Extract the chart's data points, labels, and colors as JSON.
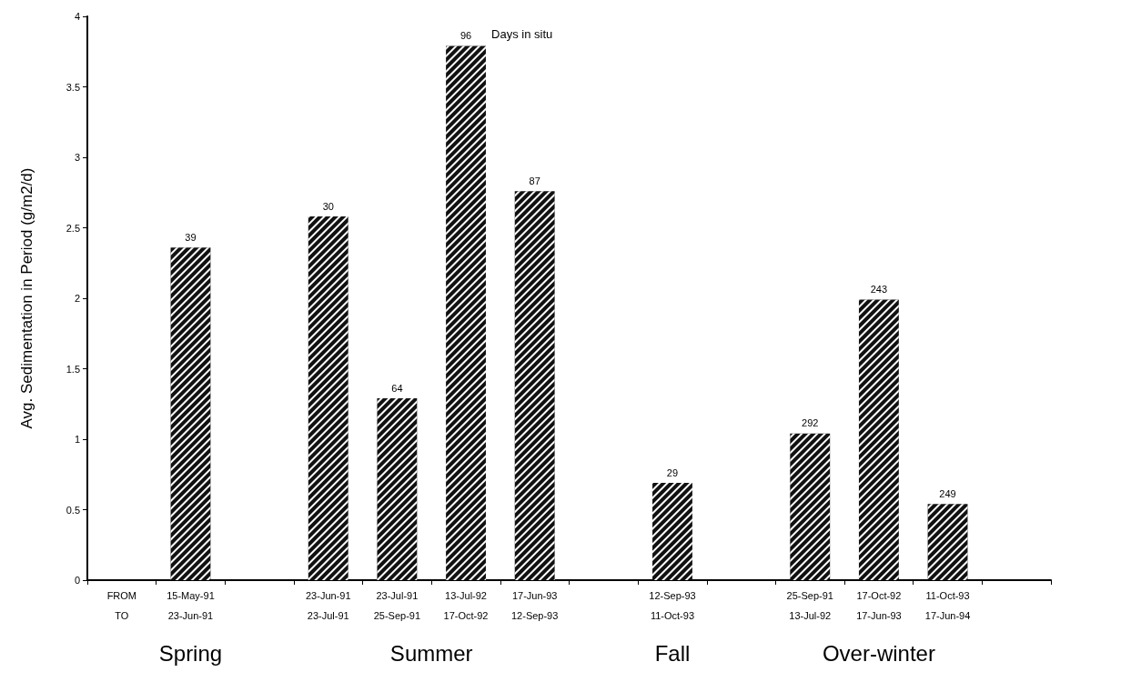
{
  "chart_data": {
    "type": "bar",
    "ylabel": "Avg. Sedimentation in Period (g/m2/d)",
    "categories": [
      "FROM\nTO",
      "15-May-91\n23-Jun-91",
      null,
      "23-Jun-91\n23-Jul-91",
      "23-Jul-91\n25-Sep-91",
      "13-Jul-92\n17-Oct-92",
      "17-Jun-93\n12-Sep-93",
      null,
      "12-Sep-93\n11-Oct-93",
      null,
      "25-Sep-91\n13-Jul-92",
      "17-Oct-92\n17-Jun-93",
      "11-Oct-93\n17-Jun-94",
      null
    ],
    "values": [
      null,
      2.36,
      null,
      2.58,
      1.29,
      3.79,
      2.76,
      null,
      0.69,
      null,
      1.04,
      1.99,
      0.54,
      null
    ],
    "color": "#111111",
    "ylim": [
      0,
      4
    ],
    "yticks": [
      0,
      0.5,
      1,
      1.5,
      2,
      2.5,
      3,
      3.5,
      4
    ],
    "grid": false,
    "annotations": [
      "Spring",
      "Summer",
      "Fall",
      "Over-winter",
      {
        "text": "39",
        "x": "15-May-91\n23-Jun-91",
        "y": 2.36
      },
      {
        "text": "30",
        "x": "23-Jun-91\n23-Jul-91",
        "y": 2.58
      },
      {
        "text": "64",
        "x": "23-Jul-91\n25-Sep-91",
        "y": 1.29
      },
      {
        "text": "96",
        "x": "13-Jul-92\n17-Oct-92",
        "y": 3.79
      },
      {
        "text": "87",
        "x": "17-Jun-93\n12-Sep-93",
        "y": 2.76
      },
      {
        "text": "29",
        "x": "12-Sep-93\n11-Oct-93",
        "y": 0.69
      },
      {
        "text": "292",
        "x": "25-Sep-91\n13-Jul-92",
        "y": 1.04
      },
      {
        "text": "243",
        "x": "17-Oct-92\n17-Jun-93",
        "y": 1.99
      },
      {
        "text": "249",
        "x": "11-Oct-93\n17-Jun-94",
        "y": 0.54
      },
      {
        "text": "Days in situ",
        "x": "13-Jul-92\n17-Oct-92",
        "y": 3.79
      }
    ]
  }
}
